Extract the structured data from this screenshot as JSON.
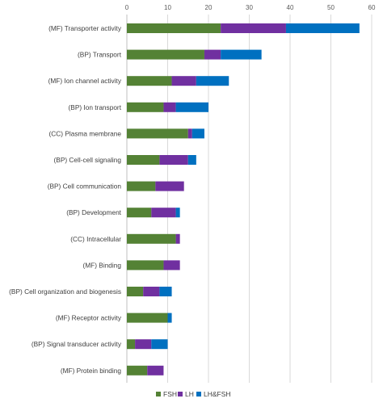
{
  "chart_data": {
    "type": "bar",
    "orientation": "horizontal",
    "stacked": true,
    "title": "",
    "xlabel": "",
    "ylabel": "",
    "xlim": [
      0,
      60
    ],
    "x_ticks": [
      0,
      10,
      20,
      30,
      40,
      50,
      60
    ],
    "x_axis_position": "top",
    "grid": true,
    "legend_position": "bottom",
    "categories": [
      "(MF) Transporter activity",
      "(BP) Transport",
      "(MF) Ion channel activity",
      "(BP) Ion transport",
      "(CC) Plasma membrane",
      "(BP) Cell-cell signaling",
      "(BP) Cell communication",
      "(BP) Development",
      "(CC) Intracellular",
      "(MF) Binding",
      "(BP) Cell organization and biogenesis",
      "(MF) Receptor activity",
      "(BP) Signal transducer activity",
      "(MF) Protein binding"
    ],
    "series": [
      {
        "name": "FSH",
        "color": "#548235",
        "values": [
          23,
          19,
          11,
          9,
          15,
          8,
          7,
          6,
          12,
          9,
          4,
          10,
          2,
          5
        ]
      },
      {
        "name": "LH",
        "color": "#7030a0",
        "values": [
          16,
          4,
          6,
          3,
          1,
          7,
          7,
          6,
          1,
          4,
          4,
          0,
          4,
          4
        ]
      },
      {
        "name": "LH&FSH",
        "color": "#0070c0",
        "values": [
          18,
          10,
          8,
          8,
          3,
          2,
          0,
          1,
          0,
          0,
          3,
          1,
          4,
          0
        ]
      }
    ]
  }
}
